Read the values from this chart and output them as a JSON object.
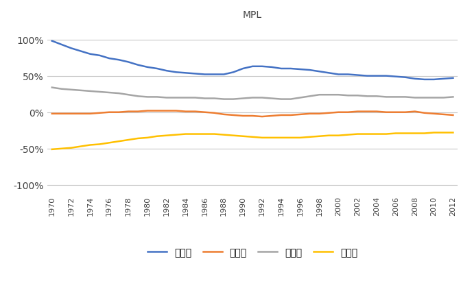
{
  "title": "MPL",
  "years": [
    1970,
    1971,
    1972,
    1973,
    1974,
    1975,
    1976,
    1977,
    1978,
    1979,
    1980,
    1981,
    1982,
    1983,
    1984,
    1985,
    1986,
    1987,
    1988,
    1989,
    1990,
    1991,
    1992,
    1993,
    1994,
    1995,
    1996,
    1997,
    1998,
    1999,
    2000,
    2001,
    2002,
    2003,
    2004,
    2005,
    2006,
    2007,
    2008,
    2009,
    2010,
    2011,
    2012
  ],
  "tokyo": [
    98,
    93,
    88,
    84,
    80,
    78,
    74,
    72,
    69,
    65,
    62,
    60,
    57,
    55,
    54,
    53,
    52,
    52,
    52,
    55,
    60,
    63,
    63,
    62,
    60,
    60,
    59,
    58,
    56,
    54,
    52,
    52,
    51,
    50,
    50,
    50,
    49,
    48,
    46,
    45,
    45,
    46,
    47
  ],
  "nagoya": [
    -2,
    -2,
    -2,
    -2,
    -2,
    -1,
    0,
    0,
    1,
    1,
    2,
    2,
    2,
    2,
    1,
    1,
    0,
    -1,
    -3,
    -4,
    -5,
    -5,
    -6,
    -5,
    -4,
    -4,
    -3,
    -2,
    -2,
    -1,
    0,
    0,
    1,
    1,
    1,
    0,
    0,
    0,
    1,
    -1,
    -2,
    -3,
    -4
  ],
  "kinki": [
    34,
    32,
    31,
    30,
    29,
    28,
    27,
    26,
    24,
    22,
    21,
    21,
    20,
    20,
    20,
    20,
    19,
    19,
    18,
    18,
    19,
    20,
    20,
    19,
    18,
    18,
    20,
    22,
    24,
    24,
    24,
    23,
    23,
    22,
    22,
    21,
    21,
    21,
    20,
    20,
    20,
    20,
    21
  ],
  "local": [
    -51,
    -50,
    -49,
    -47,
    -45,
    -44,
    -42,
    -40,
    -38,
    -36,
    -35,
    -33,
    -32,
    -31,
    -30,
    -30,
    -30,
    -30,
    -31,
    -32,
    -33,
    -34,
    -35,
    -35,
    -35,
    -35,
    -35,
    -34,
    -33,
    -32,
    -32,
    -31,
    -30,
    -30,
    -30,
    -30,
    -29,
    -29,
    -29,
    -29,
    -28,
    -28,
    -28
  ],
  "tokyo_color": "#4472C4",
  "nagoya_color": "#ED7D31",
  "kinki_color": "#A5A5A5",
  "local_color": "#FFC000",
  "ylim": [
    -110,
    120
  ],
  "yticks": [
    -100,
    -50,
    0,
    50,
    100
  ],
  "ytick_labels": [
    "-100%",
    "-50%",
    "0%",
    "50%",
    "100%"
  ],
  "legend_labels": [
    "東京圈",
    "中京圈",
    "近畸圈",
    "地方圈"
  ],
  "background_color": "#ffffff",
  "grid_color": "#C8C8C8",
  "line_width": 1.8
}
